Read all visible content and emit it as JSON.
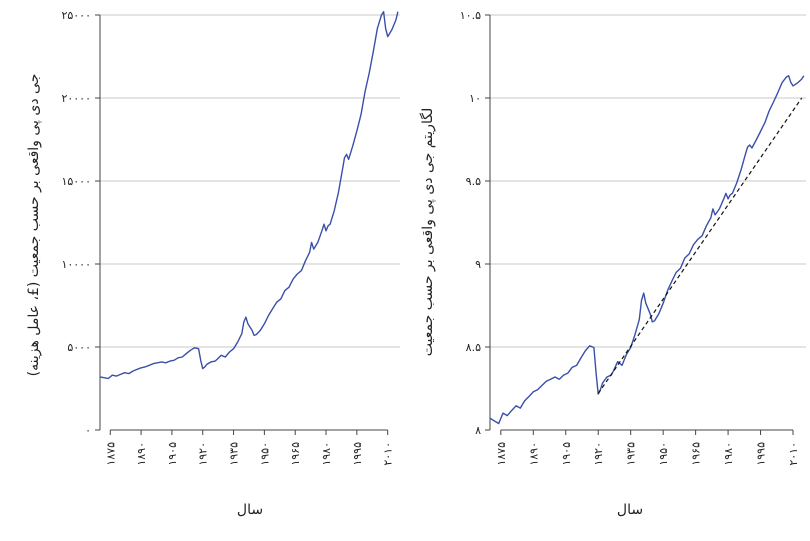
{
  "colors": {
    "series": "#3a4fa8",
    "grid": "#c8c8c8",
    "trend": "#111111"
  },
  "chart_data": [
    {
      "type": "line",
      "xlabel": "سال",
      "ylabel": "جی دی پی واقعی بر حسب جمعیت (£، عامل هزینه)",
      "xlim": [
        1870,
        2016
      ],
      "ylim": [
        0,
        25000
      ],
      "grid": "horizontal",
      "xticks": [
        1875,
        1890,
        1905,
        1920,
        1935,
        1950,
        1965,
        1980,
        1995,
        2010
      ],
      "xtick_labels": [
        "۱۸۷۵",
        "۱۸۹۰",
        "۱۹۰۵",
        "۱۹۲۰",
        "۱۹۳۵",
        "۱۹۵۰",
        "۱۹۶۵",
        "۱۹۸۰",
        "۱۹۹۵",
        "۲۰۱۰"
      ],
      "yticks": [
        0,
        5000,
        10000,
        15000,
        20000,
        25000
      ],
      "ytick_labels": [
        "۰",
        "۵۰۰۰",
        "۱۰۰۰۰",
        "۱۵۰۰۰",
        "۲۰۰۰۰",
        "۲۵۰۰۰"
      ],
      "series": [
        {
          "x": [
            1870,
            1872,
            1874,
            1876,
            1878,
            1880,
            1882,
            1884,
            1886,
            1888,
            1890,
            1892,
            1894,
            1896,
            1898,
            1900,
            1902,
            1904,
            1906,
            1908,
            1910,
            1912,
            1914,
            1916,
            1918,
            1919,
            1920,
            1921,
            1922,
            1924,
            1926,
            1927,
            1929,
            1931,
            1933,
            1935,
            1937,
            1939,
            1940,
            1941,
            1942,
            1944,
            1945,
            1946,
            1948,
            1950,
            1952,
            1954,
            1956,
            1958,
            1960,
            1962,
            1964,
            1966,
            1968,
            1970,
            1972,
            1973,
            1974,
            1976,
            1978,
            1979,
            1980,
            1981,
            1982,
            1984,
            1986,
            1988,
            1989,
            1990,
            1991,
            1993,
            1995,
            1997,
            1999,
            2001,
            2003,
            2005,
            2007,
            2008,
            2009,
            2010,
            2012,
            2014,
            2015
          ],
          "y": [
            3200,
            3150,
            3100,
            3300,
            3250,
            3350,
            3450,
            3400,
            3550,
            3650,
            3750,
            3800,
            3900,
            4000,
            4050,
            4100,
            4050,
            4150,
            4200,
            4350,
            4400,
            4600,
            4800,
            4950,
            4900,
            4200,
            3700,
            3800,
            3950,
            4100,
            4150,
            4250,
            4500,
            4400,
            4700,
            4900,
            5300,
            5800,
            6500,
            6800,
            6400,
            6000,
            5700,
            5750,
            6000,
            6400,
            6900,
            7300,
            7700,
            7900,
            8400,
            8600,
            9100,
            9400,
            9600,
            10200,
            10700,
            11300,
            10900,
            11300,
            12000,
            12400,
            12000,
            12300,
            12400,
            13200,
            14300,
            15700,
            16400,
            16600,
            16300,
            17100,
            18000,
            19000,
            20400,
            21500,
            22800,
            24200,
            25000,
            25200,
            24200,
            23700,
            24100,
            24700,
            25200
          ]
        }
      ]
    },
    {
      "type": "line",
      "xlabel": "سال",
      "ylabel": "لگاریتم جی دی پی واقعی بر حسب جمعیت",
      "xlim": [
        1870,
        2016
      ],
      "ylim": [
        8,
        10.5
      ],
      "grid": "horizontal",
      "xticks": [
        1875,
        1890,
        1905,
        1920,
        1935,
        1950,
        1965,
        1980,
        1995,
        2010
      ],
      "xtick_labels": [
        "۱۸۷۵",
        "۱۸۹۰",
        "۱۹۰۵",
        "۱۹۲۰",
        "۱۹۳۵",
        "۱۹۵۰",
        "۱۹۶۵",
        "۱۹۸۰",
        "۱۹۹۵",
        "۲۰۱۰"
      ],
      "yticks": [
        8,
        8.5,
        9,
        9.5,
        10,
        10.5
      ],
      "ytick_labels": [
        "۸",
        "۸.۵",
        "۹",
        "۹.۵",
        "۱۰",
        "۱۰.۵"
      ],
      "series": [
        {
          "x": [
            1870,
            1872,
            1874,
            1876,
            1878,
            1880,
            1882,
            1884,
            1886,
            1888,
            1890,
            1892,
            1894,
            1896,
            1898,
            1900,
            1902,
            1904,
            1906,
            1908,
            1910,
            1912,
            1914,
            1916,
            1918,
            1919,
            1920,
            1921,
            1922,
            1924,
            1926,
            1927,
            1929,
            1931,
            1933,
            1935,
            1937,
            1939,
            1940,
            1941,
            1942,
            1944,
            1945,
            1946,
            1948,
            1950,
            1952,
            1954,
            1956,
            1958,
            1960,
            1962,
            1964,
            1966,
            1968,
            1970,
            1972,
            1973,
            1974,
            1976,
            1978,
            1979,
            1980,
            1981,
            1982,
            1984,
            1986,
            1988,
            1989,
            1990,
            1991,
            1993,
            1995,
            1997,
            1999,
            2001,
            2003,
            2005,
            2007,
            2008,
            2009,
            2010,
            2012,
            2014,
            2015
          ],
          "y": [
            8.071,
            8.055,
            8.039,
            8.102,
            8.087,
            8.117,
            8.146,
            8.132,
            8.175,
            8.202,
            8.23,
            8.243,
            8.268,
            8.294,
            8.306,
            8.319,
            8.306,
            8.331,
            8.343,
            8.378,
            8.389,
            8.434,
            8.476,
            8.507,
            8.497,
            8.343,
            8.216,
            8.243,
            8.282,
            8.319,
            8.331,
            8.355,
            8.412,
            8.389,
            8.455,
            8.497,
            8.575,
            8.666,
            8.78,
            8.825,
            8.764,
            8.7,
            8.651,
            8.657,
            8.7,
            8.764,
            8.839,
            8.896,
            8.949,
            8.975,
            9.036,
            9.06,
            9.116,
            9.149,
            9.17,
            9.23,
            9.278,
            9.332,
            9.296,
            9.332,
            9.393,
            9.425,
            9.393,
            9.417,
            9.425,
            9.488,
            9.568,
            9.661,
            9.705,
            9.717,
            9.699,
            9.747,
            9.798,
            9.852,
            9.923,
            9.976,
            10.034,
            10.094,
            10.127,
            10.134,
            10.094,
            10.073,
            10.09,
            10.114,
            10.134
          ]
        },
        {
          "name": "trend",
          "style": "dashed",
          "x": [
            1920,
            2014
          ],
          "y": [
            8.22,
            10.0
          ]
        }
      ]
    }
  ]
}
